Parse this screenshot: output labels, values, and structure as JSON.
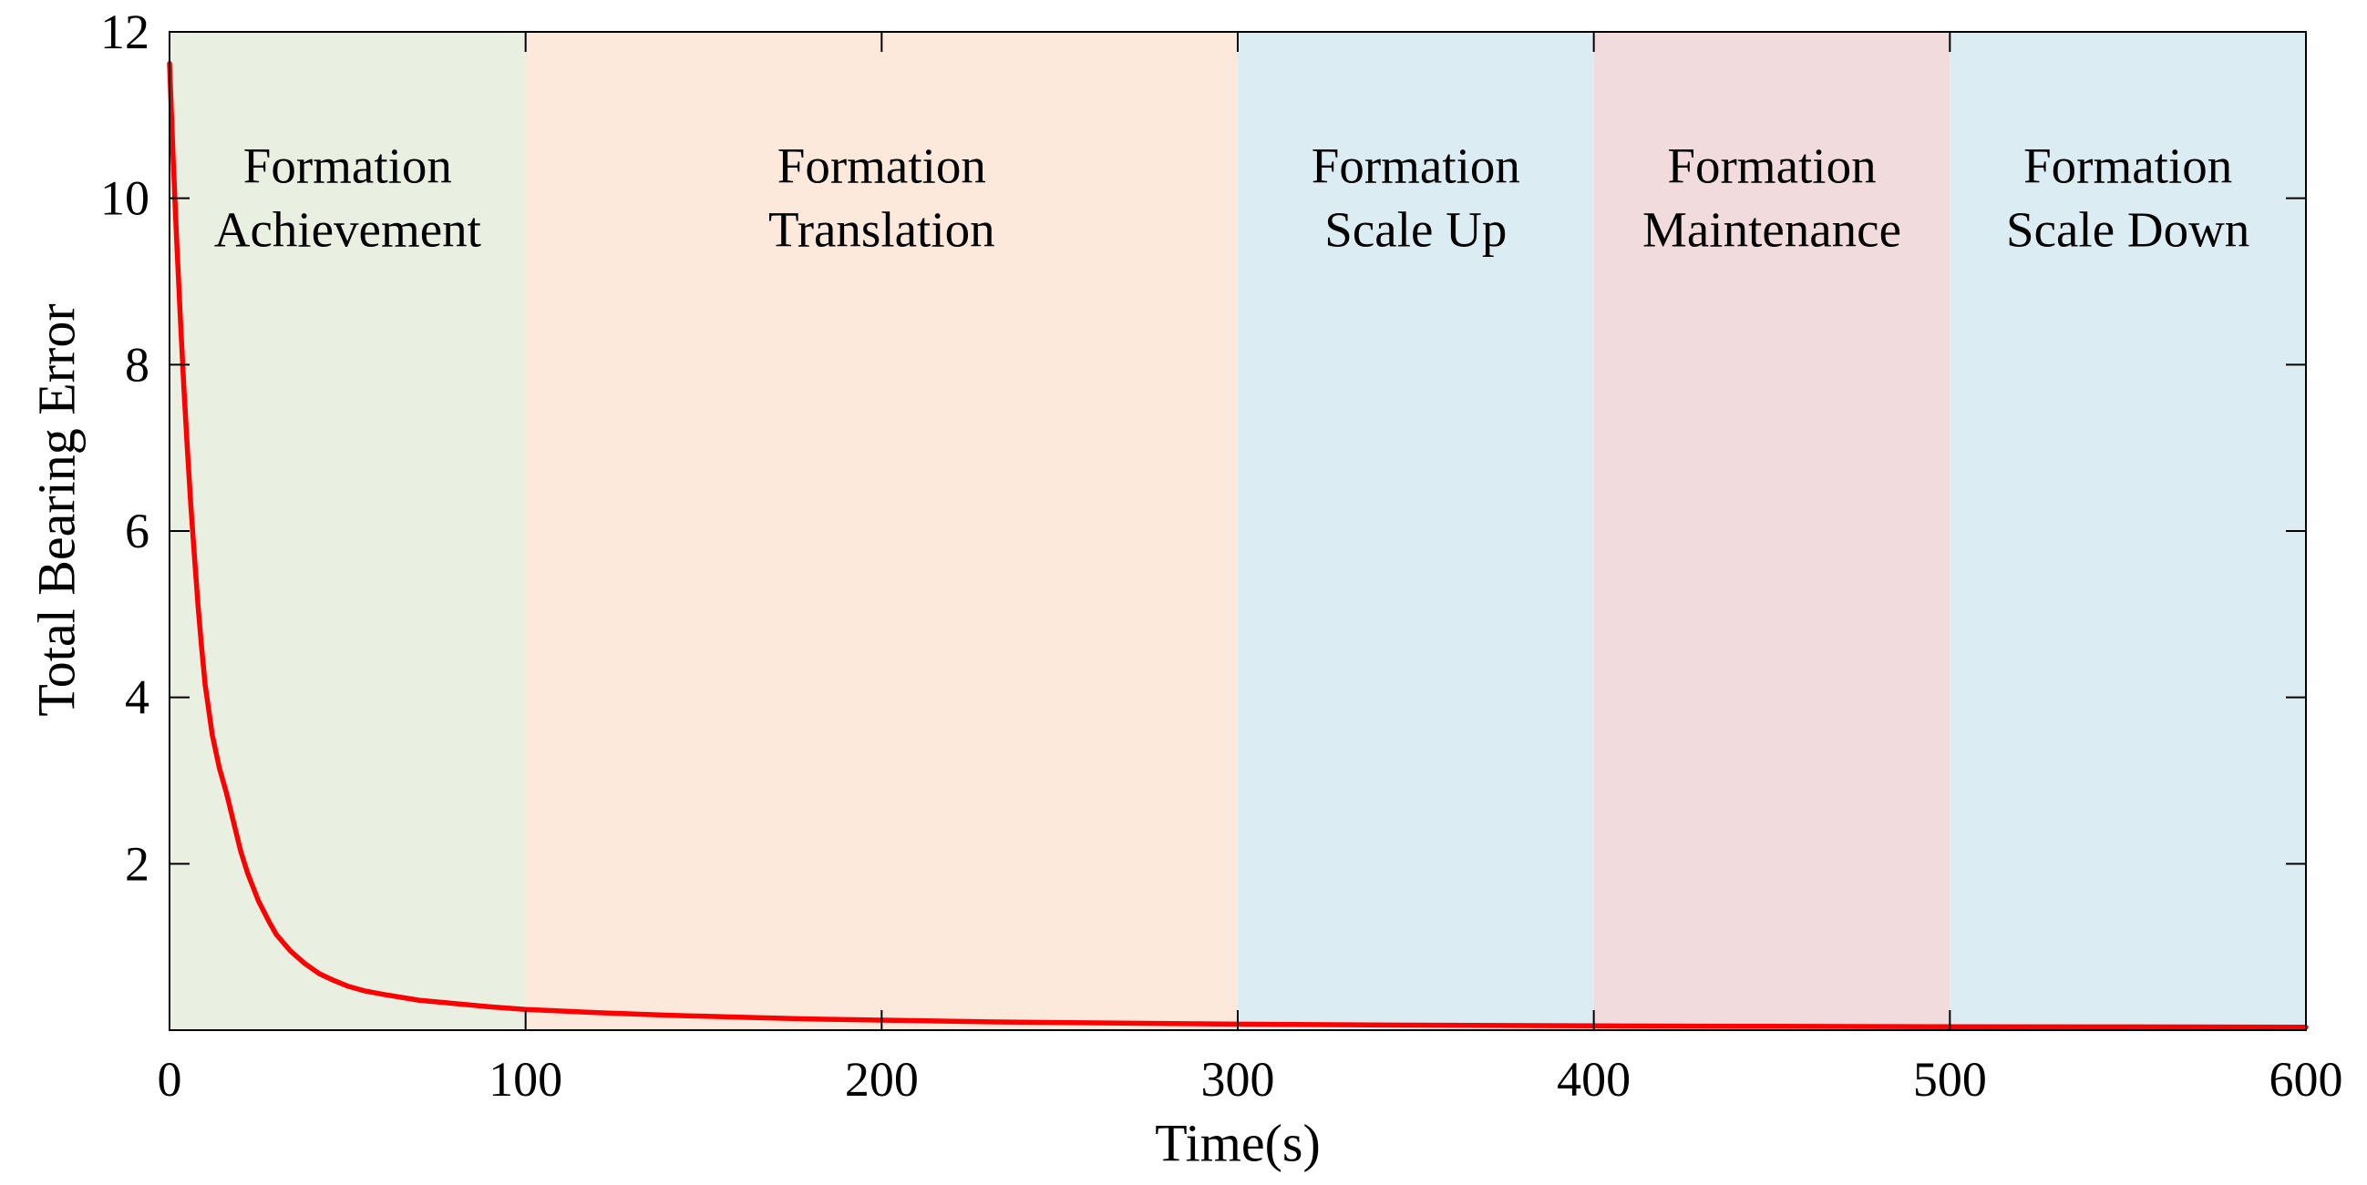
{
  "figure": {
    "background": "#ffffff",
    "axis_color": "#000000",
    "text_color": "#000000",
    "box_stroke_width": 2,
    "tick_length": 22
  },
  "chart_data": {
    "type": "line",
    "title": "",
    "xlabel": "Time(s)",
    "ylabel": "Total Bearing Error",
    "xlim": [
      0,
      600
    ],
    "ylim": [
      0,
      12
    ],
    "x_ticks": [
      0,
      100,
      200,
      300,
      400,
      500,
      600
    ],
    "y_ticks": [
      2,
      4,
      6,
      8,
      10,
      12
    ],
    "grid": false,
    "legend": "none",
    "phases": [
      {
        "name": "formation-achievement",
        "line1": "Formation",
        "line2": "Achievement",
        "x_start": 0,
        "x_end": 100,
        "color": "#e9efe1"
      },
      {
        "name": "formation-translation",
        "line1": "Formation",
        "line2": "Translation",
        "x_start": 100,
        "x_end": 300,
        "color": "#fce9db"
      },
      {
        "name": "formation-scale-up",
        "line1": "Formation",
        "line2": "Scale Up",
        "x_start": 300,
        "x_end": 400,
        "color": "#dbecf3"
      },
      {
        "name": "formation-maintenance",
        "line1": "Formation",
        "line2": "Maintenance",
        "x_start": 400,
        "x_end": 500,
        "color": "#f2dbdc"
      },
      {
        "name": "formation-scale-down",
        "line1": "Formation",
        "line2": "Scale Down",
        "x_start": 500,
        "x_end": 600,
        "color": "#dbecf3"
      }
    ],
    "series": [
      {
        "name": "total-bearing-error",
        "color": "#ff0000",
        "width": 5.5,
        "x": [
          0,
          1,
          2,
          3,
          4,
          5,
          6,
          7,
          8,
          9,
          10,
          12,
          14,
          16,
          18,
          20,
          22,
          25,
          28,
          30,
          34,
          38,
          42,
          46,
          50,
          55,
          60,
          70,
          80,
          90,
          100,
          120,
          140,
          160,
          180,
          200,
          230,
          260,
          300,
          350,
          400,
          450,
          500,
          550,
          600
        ],
        "y": [
          11.62,
          10.5,
          9.5,
          8.6,
          7.75,
          7.0,
          6.3,
          5.7,
          5.1,
          4.6,
          4.15,
          3.55,
          3.15,
          2.85,
          2.5,
          2.15,
          1.88,
          1.55,
          1.3,
          1.15,
          0.95,
          0.8,
          0.68,
          0.6,
          0.53,
          0.47,
          0.43,
          0.36,
          0.32,
          0.28,
          0.25,
          0.21,
          0.18,
          0.155,
          0.135,
          0.12,
          0.1,
          0.088,
          0.072,
          0.06,
          0.052,
          0.046,
          0.042,
          0.039,
          0.036
        ]
      }
    ]
  }
}
